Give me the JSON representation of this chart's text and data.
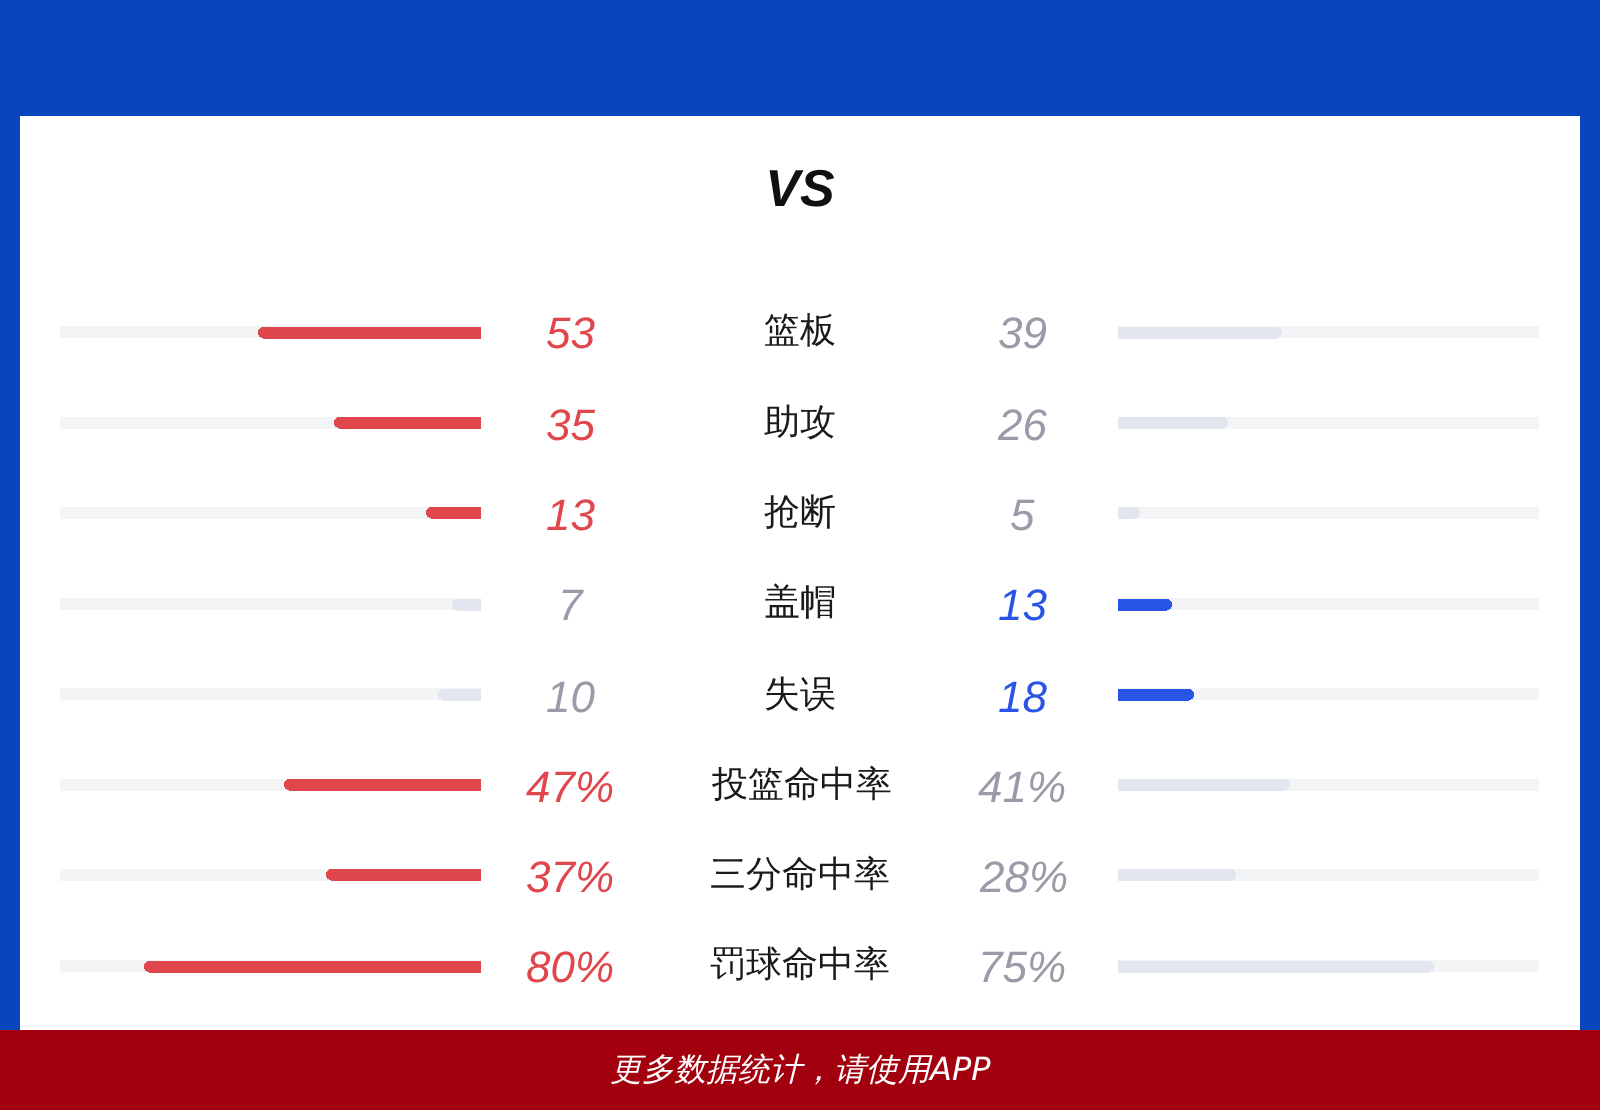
{
  "chart_data": [
    {
      "type": "bar",
      "orientation": "horizontal",
      "title": "VS",
      "categories": [
        "篮板",
        "助攻",
        "抢断",
        "盖帽",
        "失误",
        "投篮命中率",
        "三分命中率",
        "罚球命中率"
      ],
      "color": "#e0474c",
      "colors": [
        "#e0474c",
        "#e0474c",
        "#e0474c",
        "#e2e7ef",
        "#e2e7ef",
        "#e0474c",
        "#e0474c",
        "#e0474c"
      ],
      "values": [
        53,
        35,
        13,
        7,
        10,
        47,
        37,
        80
      ],
      "value_labels": [
        "53",
        "35",
        "13",
        "7",
        "10",
        "47%",
        "37%",
        "80%"
      ],
      "xlim": [
        100,
        0
      ],
      "grid": "y",
      "tick_labels": "y"
    },
    {
      "type": "bar",
      "orientation": "horizontal",
      "categories": [
        null,
        null,
        null,
        null,
        null,
        null,
        null,
        null
      ],
      "color": "#2855e6",
      "colors": [
        "#e2e7ef",
        "#e2e7ef",
        "#e2e7ef",
        "#2855e6",
        "#2855e6",
        "#e2e7ef",
        "#e2e7ef",
        "#e2e7ef"
      ],
      "values": [
        39,
        26,
        5,
        13,
        18,
        41,
        28,
        75
      ],
      "value_labels": [
        "39",
        "26",
        "5",
        "13",
        "18",
        "41%",
        "28%",
        "75%"
      ],
      "xlim": [
        0,
        100
      ],
      "grid": "y",
      "tick_labels": false,
      "annotations": [
        "更多数据统计，请使用APP"
      ]
    }
  ]
}
